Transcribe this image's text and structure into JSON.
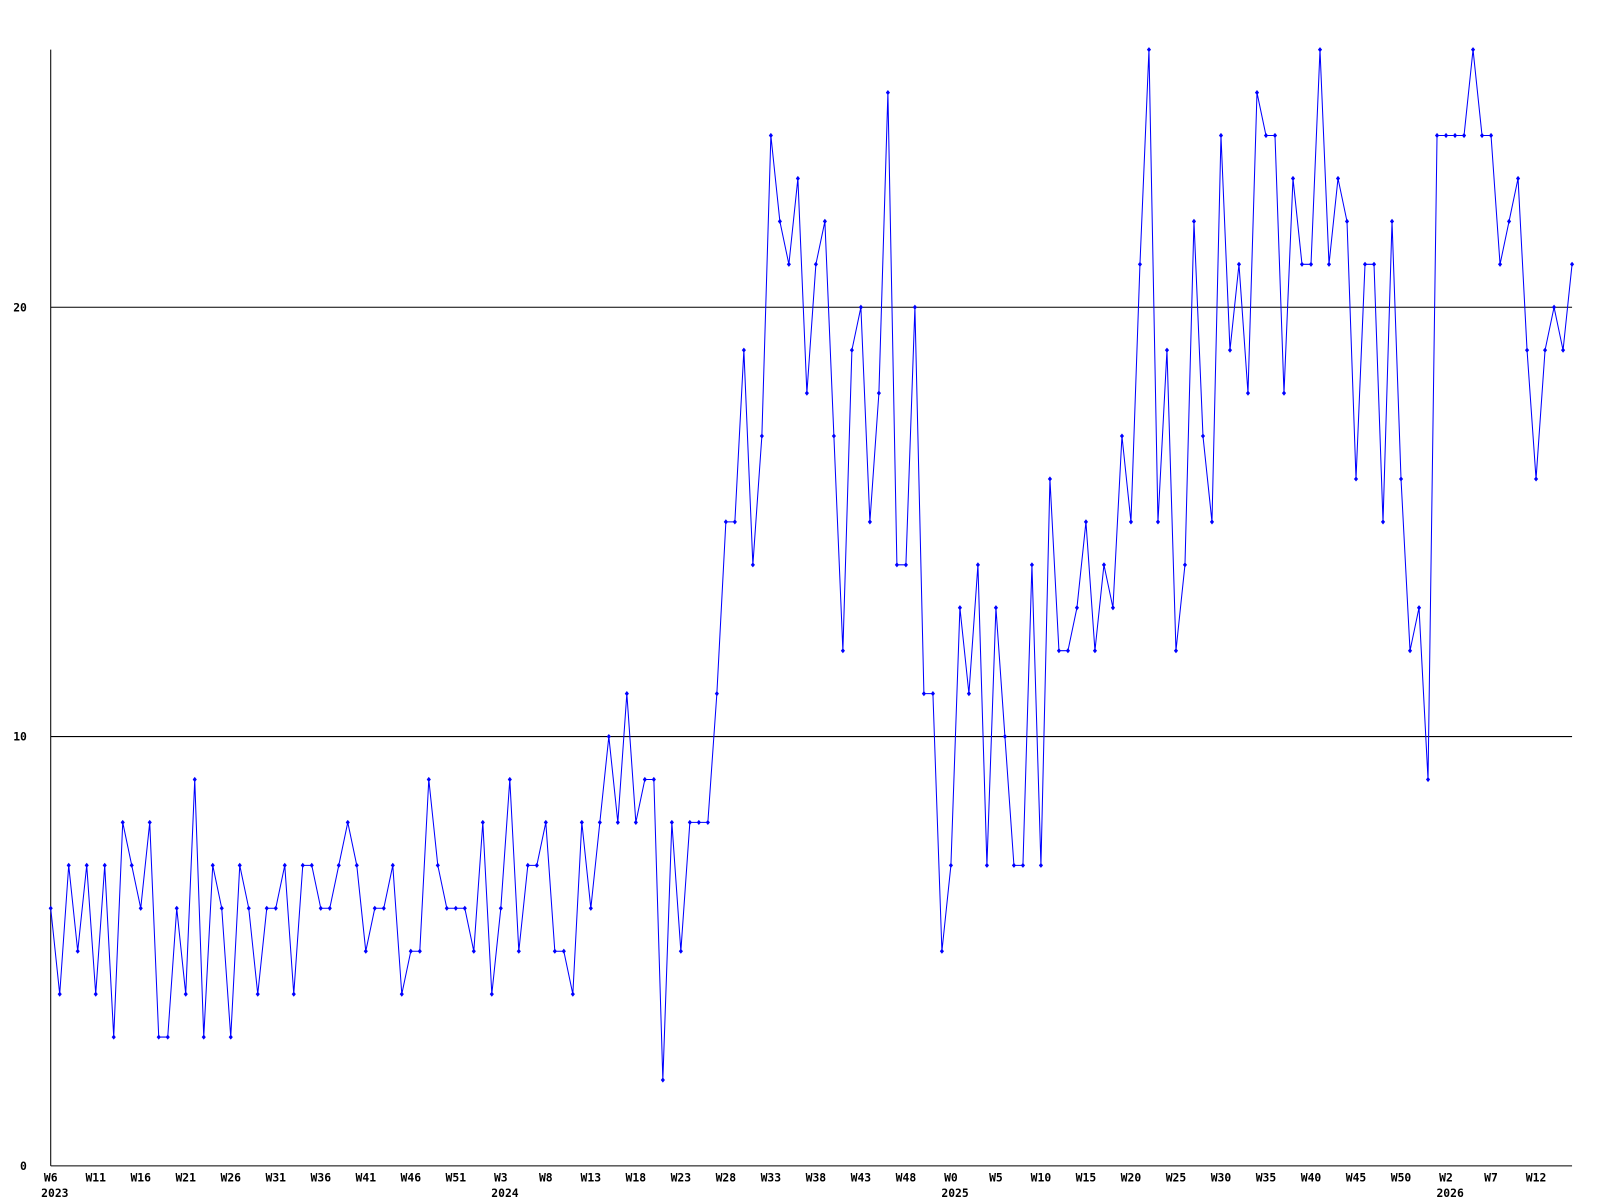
{
  "chart_data": {
    "type": "line",
    "color": "#0000ff",
    "ylim": [
      0,
      26
    ],
    "yticks": [
      0,
      10,
      20
    ],
    "grid": true,
    "categories": [
      "W6",
      null,
      null,
      null,
      null,
      "W11",
      null,
      null,
      null,
      null,
      "W16",
      null,
      null,
      null,
      null,
      "W21",
      null,
      null,
      null,
      null,
      "W26",
      null,
      null,
      null,
      null,
      "W31",
      null,
      null,
      null,
      null,
      "W36",
      null,
      null,
      null,
      null,
      "W41",
      null,
      null,
      null,
      null,
      "W46",
      null,
      null,
      null,
      null,
      "W51",
      null,
      null,
      null,
      null,
      "W3",
      null,
      null,
      null,
      null,
      "W8",
      null,
      null,
      null,
      null,
      "W13",
      null,
      null,
      null,
      null,
      "W18",
      null,
      null,
      null,
      null,
      "W23",
      null,
      null,
      null,
      null,
      "W28",
      null,
      null,
      null,
      null,
      "W33",
      null,
      null,
      null,
      null,
      "W38",
      null,
      null,
      null,
      null,
      "W43",
      null,
      null,
      null,
      null,
      "W48",
      null,
      null,
      null,
      null,
      "W0",
      null,
      null,
      null,
      null,
      "W5",
      null,
      null,
      null,
      null,
      "W10",
      null,
      null,
      null,
      null,
      "W15",
      null,
      null,
      null,
      null,
      "W20",
      null,
      null,
      null,
      null,
      "W25",
      null,
      null,
      null,
      null,
      "W30",
      null,
      null,
      null,
      null,
      "W35",
      null,
      null,
      null,
      null,
      "W40",
      null,
      null,
      null,
      null,
      "W45",
      null,
      null,
      null,
      null,
      "W50",
      null,
      null,
      null,
      null,
      "W2",
      null,
      null,
      null,
      null,
      "W7",
      null,
      null,
      null,
      null,
      "W12",
      null,
      null,
      null,
      null
    ],
    "category_years": [
      "2023",
      null,
      null,
      null,
      null,
      null,
      null,
      null,
      null,
      null,
      null,
      null,
      null,
      null,
      null,
      null,
      null,
      null,
      null,
      null,
      null,
      null,
      null,
      null,
      null,
      null,
      null,
      null,
      null,
      null,
      null,
      null,
      null,
      null,
      null,
      null,
      null,
      null,
      null,
      null,
      null,
      null,
      null,
      null,
      null,
      null,
      null,
      null,
      null,
      null,
      "2024",
      null,
      null,
      null,
      null,
      null,
      null,
      null,
      null,
      null,
      null,
      null,
      null,
      null,
      null,
      null,
      null,
      null,
      null,
      null,
      null,
      null,
      null,
      null,
      null,
      null,
      null,
      null,
      null,
      null,
      null,
      null,
      null,
      null,
      null,
      null,
      null,
      null,
      null,
      null,
      null,
      null,
      null,
      null,
      null,
      null,
      null,
      null,
      null,
      null,
      "2025",
      null,
      null,
      null,
      null,
      null,
      null,
      null,
      null,
      null,
      null,
      null,
      null,
      null,
      null,
      null,
      null,
      null,
      null,
      null,
      null,
      null,
      null,
      null,
      null,
      null,
      null,
      null,
      null,
      null,
      null,
      null,
      null,
      null,
      null,
      null,
      null,
      null,
      null,
      null,
      null,
      null,
      null,
      null,
      null,
      null,
      null,
      null,
      null,
      null,
      null,
      null,
      null,
      null,
      null,
      "2026",
      null,
      null,
      null,
      null,
      null,
      null,
      null,
      null,
      null,
      null,
      null,
      null,
      null,
      null
    ],
    "values": [
      6,
      4,
      7,
      5,
      7,
      4,
      7,
      3,
      8,
      7,
      6,
      8,
      3,
      3,
      6,
      4,
      9,
      3,
      7,
      6,
      3,
      7,
      6,
      4,
      6,
      6,
      7,
      4,
      7,
      7,
      6,
      6,
      7,
      8,
      7,
      5,
      6,
      6,
      7,
      4,
      5,
      5,
      9,
      7,
      6,
      6,
      6,
      5,
      8,
      4,
      6,
      9,
      5,
      7,
      7,
      8,
      5,
      5,
      4,
      8,
      6,
      8,
      10,
      8,
      11,
      8,
      9,
      9,
      2,
      8,
      5,
      8,
      8,
      8,
      11,
      15,
      15,
      19,
      14,
      17,
      24,
      22,
      21,
      23,
      18,
      21,
      22,
      17,
      12,
      19,
      20,
      15,
      18,
      25,
      14,
      14,
      20,
      11,
      11,
      5,
      7,
      13,
      11,
      14,
      7,
      13,
      10,
      7,
      7,
      14,
      7,
      16,
      12,
      12,
      13,
      15,
      12,
      14,
      13,
      17,
      15,
      21,
      26,
      15,
      19,
      12,
      14,
      22,
      17,
      15,
      24,
      19,
      21,
      18,
      25,
      24,
      24,
      18,
      23,
      21,
      21,
      26,
      21,
      23,
      22,
      16,
      21,
      21,
      15,
      22,
      16,
      12,
      13,
      9,
      24,
      24,
      24,
      24,
      26,
      24,
      24,
      21,
      22,
      23,
      19,
      16,
      19,
      20,
      19,
      21
    ]
  }
}
